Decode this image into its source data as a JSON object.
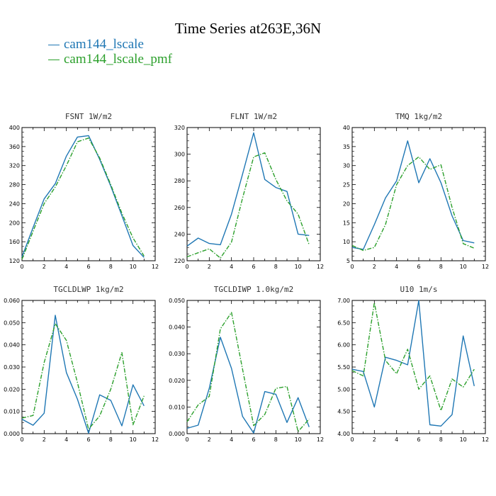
{
  "figure": {
    "title": "Time Series at263E,36N",
    "legend": [
      {
        "label": "cam144_lscale",
        "color": "#1f77b4"
      },
      {
        "label": "cam144_lscale_pmf",
        "color": "#2ca02c"
      }
    ]
  },
  "chart_data": [
    {
      "type": "line",
      "title": "FSNT  1W/m2",
      "xlim": [
        0,
        12
      ],
      "ylim": [
        120,
        400
      ],
      "xticks": [
        0,
        2,
        4,
        6,
        8,
        10,
        12
      ],
      "yticks": [
        120,
        160,
        200,
        240,
        280,
        320,
        360,
        400
      ],
      "ytick_labels": [
        "120",
        "160",
        "200",
        "240",
        "280",
        "320",
        "360",
        "400"
      ],
      "x": [
        0,
        1,
        2,
        3,
        4,
        5,
        6,
        7,
        8,
        9,
        10,
        11
      ],
      "series": [
        {
          "name": "cam144_lscale",
          "color": "#1f77b4",
          "dashed": false,
          "values": [
            128,
            190,
            250,
            282,
            340,
            380,
            383,
            333,
            277,
            215,
            152,
            127
          ]
        },
        {
          "name": "cam144_lscale_pmf",
          "color": "#2ca02c",
          "dashed": true,
          "values": [
            123,
            182,
            240,
            275,
            320,
            370,
            378,
            336,
            280,
            220,
            168,
            130
          ]
        }
      ]
    },
    {
      "type": "line",
      "title": "FLNT  1W/m2",
      "xlim": [
        0,
        12
      ],
      "ylim": [
        220,
        320
      ],
      "xticks": [
        0,
        2,
        4,
        6,
        8,
        10,
        12
      ],
      "yticks": [
        220,
        240,
        260,
        280,
        300,
        320
      ],
      "ytick_labels": [
        "220",
        "240",
        "260",
        "280",
        "300",
        "320"
      ],
      "x": [
        0,
        1,
        2,
        3,
        4,
        5,
        6,
        7,
        8,
        9,
        10,
        11
      ],
      "series": [
        {
          "name": "cam144_lscale",
          "color": "#1f77b4",
          "dashed": false,
          "values": [
            231,
            237,
            233,
            232,
            255,
            285,
            316,
            281,
            275,
            272,
            240,
            239
          ]
        },
        {
          "name": "cam144_lscale_pmf",
          "color": "#2ca02c",
          "dashed": true,
          "values": [
            223,
            226,
            229,
            222,
            234,
            267,
            298,
            301,
            281,
            265,
            255,
            232
          ]
        }
      ]
    },
    {
      "type": "line",
      "title": "TMQ  1kg/m2",
      "xlim": [
        0,
        12
      ],
      "ylim": [
        5,
        40
      ],
      "xticks": [
        0,
        2,
        4,
        6,
        8,
        10,
        12
      ],
      "yticks": [
        5,
        10,
        15,
        20,
        25,
        30,
        35,
        40
      ],
      "ytick_labels": [
        "5",
        "10",
        "15",
        "20",
        "25",
        "30",
        "35",
        "40"
      ],
      "x": [
        0,
        1,
        2,
        3,
        4,
        5,
        6,
        7,
        8,
        9,
        10,
        11
      ],
      "series": [
        {
          "name": "cam144_lscale",
          "color": "#1f77b4",
          "dashed": false,
          "values": [
            8.5,
            8.0,
            14.5,
            21.5,
            26.0,
            36.5,
            25.5,
            31.8,
            25.5,
            16.8,
            10.3,
            9.7
          ]
        },
        {
          "name": "cam144_lscale_pmf",
          "color": "#2ca02c",
          "dashed": true,
          "values": [
            9.0,
            7.7,
            8.5,
            14.5,
            25.0,
            30.0,
            32.3,
            29.0,
            30.2,
            19.0,
            9.5,
            8.3
          ]
        }
      ]
    },
    {
      "type": "line",
      "title": "TGCLDLWP  1kg/m2",
      "xlim": [
        0,
        12
      ],
      "ylim": [
        0,
        0.06
      ],
      "xticks": [
        0,
        2,
        4,
        6,
        8,
        10,
        12
      ],
      "yticks": [
        0,
        0.01,
        0.02,
        0.03,
        0.04,
        0.05,
        0.06
      ],
      "ytick_labels": [
        "0.000",
        "0.010",
        "0.020",
        "0.030",
        "0.040",
        "0.050",
        "0.060"
      ],
      "x": [
        0,
        1,
        2,
        3,
        4,
        5,
        6,
        7,
        8,
        9,
        10,
        11
      ],
      "series": [
        {
          "name": "cam144_lscale",
          "color": "#1f77b4",
          "dashed": false,
          "values": [
            0.0065,
            0.0038,
            0.0092,
            0.0533,
            0.0275,
            0.0155,
            0.0002,
            0.0175,
            0.015,
            0.0035,
            0.022,
            0.0125
          ]
        },
        {
          "name": "cam144_lscale_pmf",
          "color": "#2ca02c",
          "dashed": true,
          "values": [
            0.007,
            0.0082,
            0.032,
            0.0495,
            0.042,
            0.023,
            0.002,
            0.008,
            0.02,
            0.0365,
            0.004,
            0.017
          ]
        }
      ]
    },
    {
      "type": "line",
      "title": "TGCLDIWP  1.0kg/m2",
      "xlim": [
        0,
        12
      ],
      "ylim": [
        0,
        0.05
      ],
      "xticks": [
        0,
        2,
        4,
        6,
        8,
        10,
        12
      ],
      "yticks": [
        0,
        0.01,
        0.02,
        0.03,
        0.04,
        0.05
      ],
      "ytick_labels": [
        "0.000",
        "0.010",
        "0.020",
        "0.030",
        "0.040",
        "0.050"
      ],
      "x": [
        0,
        1,
        2,
        3,
        4,
        5,
        6,
        7,
        8,
        9,
        10,
        11
      ],
      "series": [
        {
          "name": "cam144_lscale",
          "color": "#1f77b4",
          "dashed": false,
          "values": [
            0.002,
            0.0032,
            0.017,
            0.0362,
            0.0245,
            0.0065,
            0.0002,
            0.0158,
            0.0148,
            0.0042,
            0.0135,
            0.0025
          ]
        },
        {
          "name": "cam144_lscale_pmf",
          "color": "#2ca02c",
          "dashed": true,
          "values": [
            0.0045,
            0.0108,
            0.014,
            0.0393,
            0.0455,
            0.0242,
            0.003,
            0.0072,
            0.017,
            0.0177,
            0.0008,
            0.0055
          ]
        }
      ]
    },
    {
      "type": "line",
      "title": "U10  1m/s",
      "xlim": [
        0,
        12
      ],
      "ylim": [
        4.0,
        7.0
      ],
      "xticks": [
        0,
        2,
        4,
        6,
        8,
        10,
        12
      ],
      "yticks": [
        4.0,
        4.5,
        5.0,
        5.5,
        6.0,
        6.5,
        7.0
      ],
      "ytick_labels": [
        "4.00",
        "4.50",
        "5.00",
        "5.50",
        "6.00",
        "6.50",
        "7.00"
      ],
      "x": [
        0,
        1,
        2,
        3,
        4,
        5,
        6,
        7,
        8,
        9,
        10,
        11
      ],
      "series": [
        {
          "name": "cam144_lscale",
          "color": "#1f77b4",
          "dashed": false,
          "values": [
            5.45,
            5.4,
            4.6,
            5.72,
            5.65,
            5.55,
            7.0,
            4.2,
            4.17,
            4.43,
            6.2,
            5.07
          ]
        },
        {
          "name": "cam144_lscale_pmf",
          "color": "#2ca02c",
          "dashed": true,
          "values": [
            5.42,
            5.3,
            6.95,
            5.65,
            5.35,
            5.9,
            5.0,
            5.3,
            4.52,
            5.23,
            5.05,
            5.45
          ]
        }
      ]
    }
  ]
}
